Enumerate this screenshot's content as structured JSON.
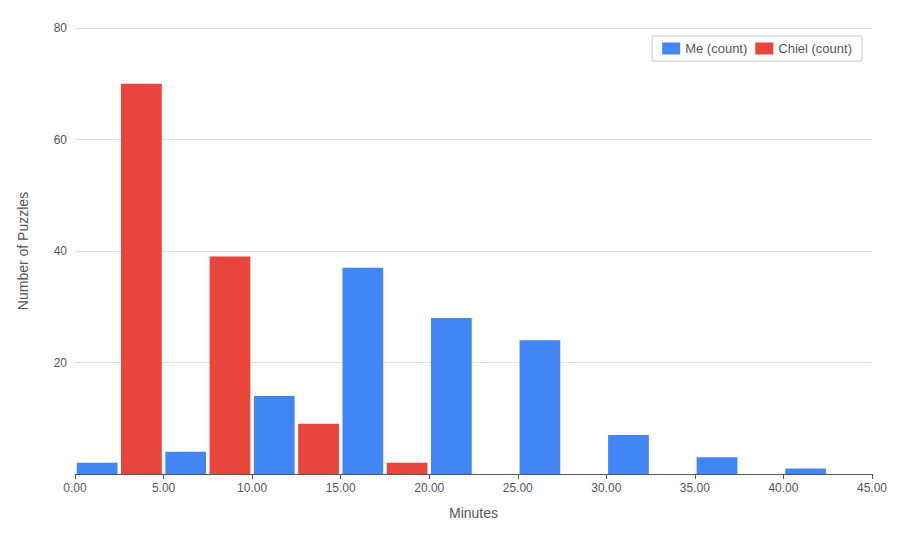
{
  "chart_data": {
    "type": "histogram",
    "bins": [
      0,
      5,
      10,
      15,
      20,
      25,
      30,
      35,
      40,
      45
    ],
    "series": [
      {
        "name": "Me (count)",
        "color": "#4285f4",
        "values": [
          2,
          4,
          14,
          37,
          28,
          24,
          7,
          3,
          1
        ]
      },
      {
        "name": "Chiel (count)",
        "color": "#e8453c",
        "values": [
          70,
          39,
          9,
          2,
          0,
          0,
          0,
          0,
          0
        ]
      }
    ],
    "xlabel": "Minutes",
    "ylabel": "Number of Puzzles",
    "xlim": [
      0,
      45
    ],
    "xticks": [
      {
        "value": 0,
        "label": "0.00"
      },
      {
        "value": 5,
        "label": "5.00"
      },
      {
        "value": 10,
        "label": "10.00"
      },
      {
        "value": 15,
        "label": "15.00"
      },
      {
        "value": 20,
        "label": "20.00"
      },
      {
        "value": 25,
        "label": "25.00"
      },
      {
        "value": 30,
        "label": "30.00"
      },
      {
        "value": 35,
        "label": "35.00"
      },
      {
        "value": 40,
        "label": "40.00"
      },
      {
        "value": 45,
        "label": "45.00"
      }
    ],
    "ylim": [
      0,
      80
    ],
    "yticks": [
      20,
      40,
      60,
      80
    ],
    "grid": true,
    "legend": "upper right"
  }
}
